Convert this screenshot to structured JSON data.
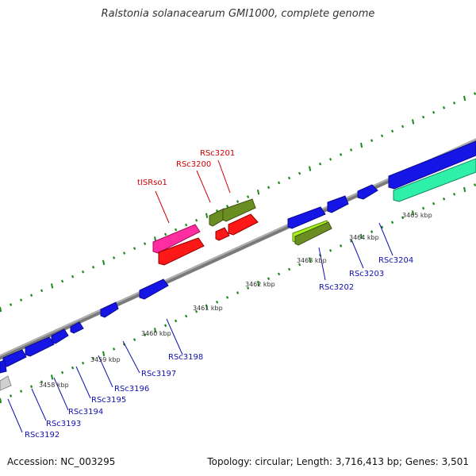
{
  "title": "Ralstonia solanacearum GMI1000, complete genome",
  "footer": {
    "accession": "Accession: NC_003295",
    "summary": "Topology: circular; Length: 3,716,413 bp; Genes: 3,501"
  },
  "colors": {
    "forward_gene": "#1010e0",
    "reverse_gene": "#0f0fd8",
    "is_element": "#ff1493",
    "pseudo": "#ff1010",
    "olive": "#6b8e23",
    "lime": "#9acd32",
    "teal": "#33f0b0",
    "gray": "#c8c8c8",
    "label_blue": "#1010b0",
    "label_red": "#cc0000",
    "tick_green": "#1a8a1a"
  },
  "scale_labels": [
    "3458 kbp",
    "3459 kbp",
    "3460 kbp",
    "3461 kbp",
    "3462 kbp",
    "3463 kbp",
    "3464 kbp",
    "3465 kbp"
  ],
  "gene_labels": [
    {
      "text": "RSc3192",
      "color": "blue"
    },
    {
      "text": "RSc3193",
      "color": "blue"
    },
    {
      "text": "RSc3194",
      "color": "blue"
    },
    {
      "text": "RSc3195",
      "color": "blue"
    },
    {
      "text": "RSc3196",
      "color": "blue"
    },
    {
      "text": "RSc3197",
      "color": "blue"
    },
    {
      "text": "RSc3198",
      "color": "blue"
    },
    {
      "text": "RSc3202",
      "color": "blue"
    },
    {
      "text": "RSc3203",
      "color": "blue"
    },
    {
      "text": "RSc3204",
      "color": "blue"
    },
    {
      "text": "tISRso1",
      "color": "red"
    },
    {
      "text": "RSc3200",
      "color": "red"
    },
    {
      "text": "RSc3201",
      "color": "red"
    }
  ]
}
